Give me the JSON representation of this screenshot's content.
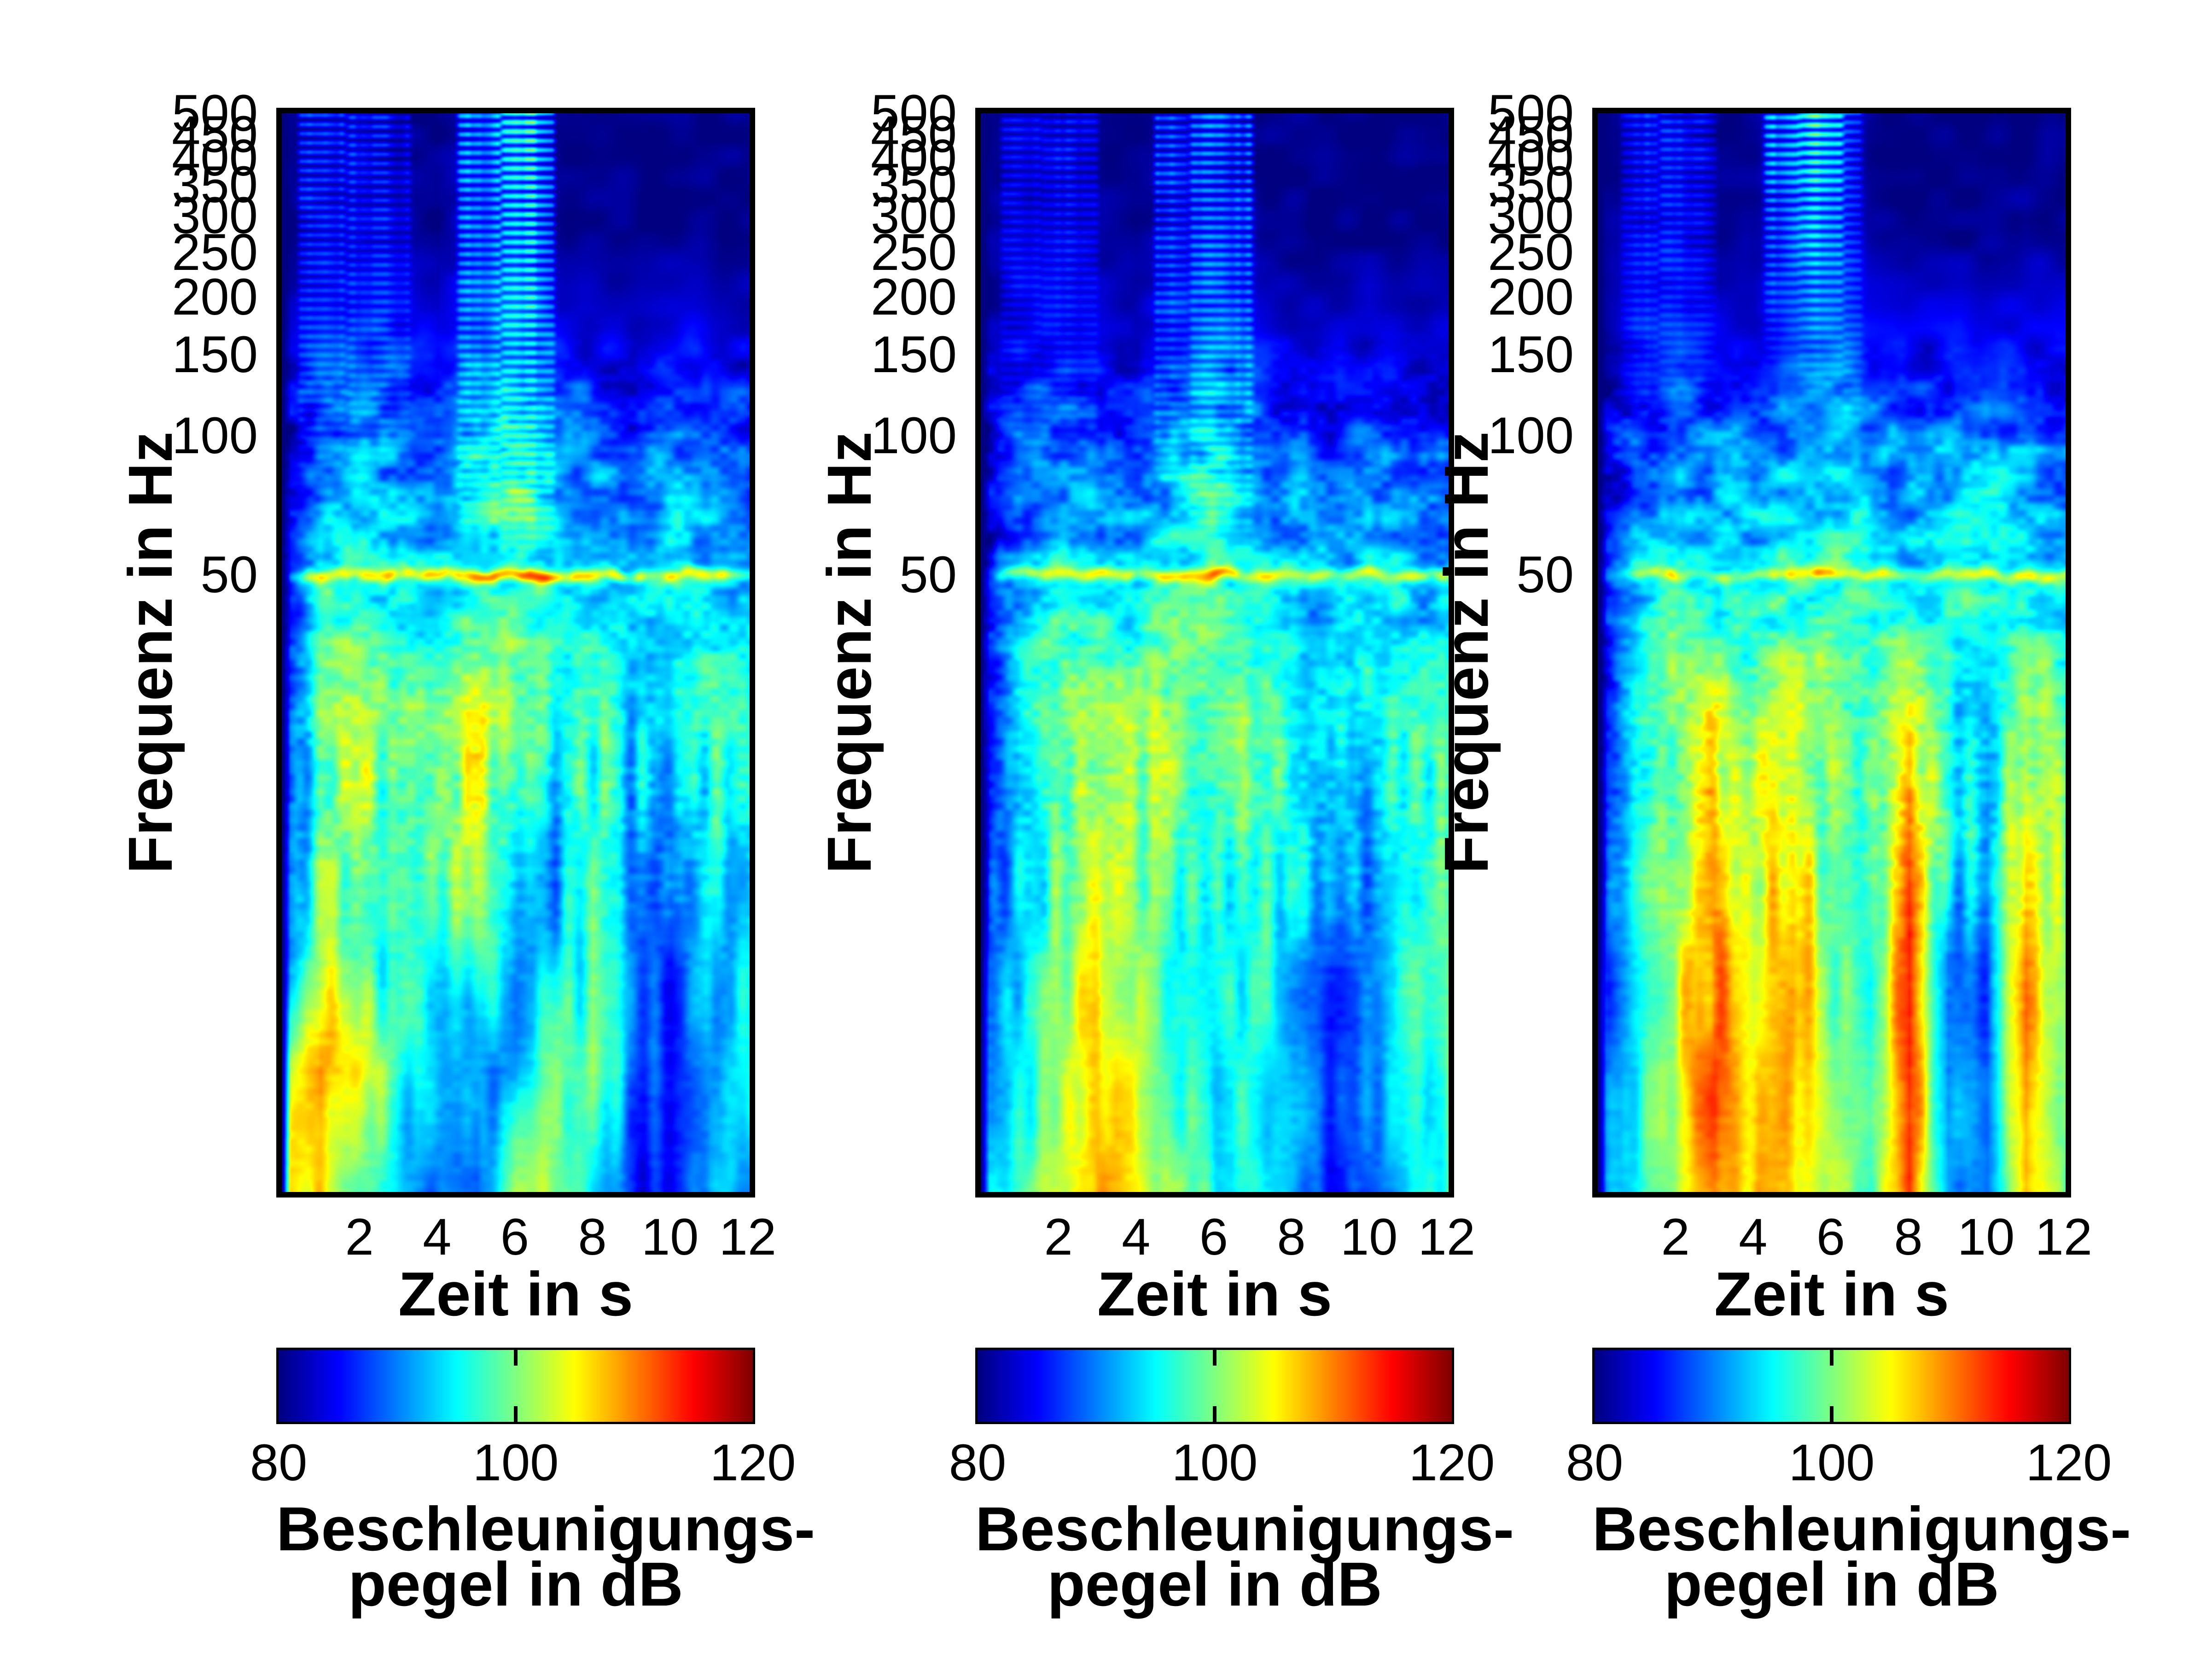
{
  "chart_data": {
    "type": "heatmap",
    "subtype": "spectrogram",
    "figure_background": "#ffffff",
    "colormap": {
      "name": "jet",
      "dark_blue": "#000080",
      "dark_red": "#800000"
    },
    "layout_hints": {
      "panels_side_by_side": 3,
      "colorbar_position": "below each panel",
      "grid": "off"
    },
    "panels": [
      {
        "position": "left",
        "xlabel": "Zeit in s",
        "ylabel": "Frequenz in Hz",
        "x_ticks": [
          2,
          4,
          6,
          8,
          10,
          12
        ],
        "y_ticks": [
          500,
          450,
          400,
          350,
          300,
          250,
          200,
          150,
          100,
          50
        ],
        "t_range": [
          0,
          12.05
        ],
        "f_range": [
          2.3,
          500
        ],
        "f_scale": "log",
        "colorbar": {
          "ticks": [
            80,
            100,
            120
          ],
          "min": 80,
          "max": 120,
          "caption_line1": "Beschleunigungs-",
          "caption_line2": "pegel in dB"
        },
        "seed": 101,
        "level_grid_dB": [
          [
            80,
            81,
            81,
            80,
            80,
            82,
            84,
            80,
            80,
            80,
            80,
            80,
            80
          ],
          [
            80,
            82,
            82,
            81,
            80,
            84,
            85,
            81,
            80,
            80,
            80,
            80,
            80
          ],
          [
            81,
            85,
            86,
            85,
            84,
            87,
            88,
            85,
            84,
            84,
            85,
            84,
            83
          ],
          [
            82,
            90,
            92,
            91,
            90,
            93,
            95,
            92,
            90,
            89,
            91,
            90,
            88
          ],
          [
            83,
            95,
            97,
            94,
            93,
            97,
            98,
            95,
            93,
            92,
            95,
            93,
            91
          ],
          [
            84,
            100,
            103,
            99,
            102,
            104,
            100,
            97,
            98,
            94,
            96,
            97,
            95
          ],
          [
            85,
            99,
            101,
            95,
            100,
            102,
            97,
            92,
            97,
            92,
            88,
            95,
            94
          ],
          [
            88,
            101,
            99,
            94,
            96,
            99,
            93,
            91,
            98,
            90,
            86,
            93,
            95
          ],
          [
            100,
            110,
            106,
            97,
            92,
            90,
            89,
            99,
            100,
            90,
            86,
            92,
            94
          ],
          [
            108,
            105,
            99,
            92,
            89,
            87,
            103,
            101,
            94,
            86,
            85,
            93,
            91
          ]
        ],
        "line50_boost_dB": [
          0,
          10,
          11,
          10,
          11,
          12,
          16,
          12,
          11,
          9,
          10,
          11,
          10
        ],
        "comb_events": [
          {
            "t_start": 0.45,
            "t_end": 1.6,
            "gain_dB": 9,
            "v_extent": 0.34
          },
          {
            "t_start": 1.7,
            "t_end": 3.3,
            "gain_dB": 7,
            "v_extent": 0.34
          },
          {
            "t_start": 4.55,
            "t_end": 5.6,
            "gain_dB": 15,
            "v_extent": 0.4
          },
          {
            "t_start": 5.7,
            "t_end": 7.0,
            "gain_dB": 17,
            "v_extent": 0.42
          }
        ]
      },
      {
        "position": "middle",
        "xlabel": "Zeit in s",
        "ylabel": "Frequenz in Hz",
        "x_ticks": [
          2,
          4,
          6,
          8,
          10,
          12
        ],
        "y_ticks": [
          500,
          450,
          400,
          350,
          300,
          250,
          200,
          150,
          100,
          50
        ],
        "t_range": [
          0,
          12.05
        ],
        "f_range": [
          2.3,
          500
        ],
        "f_scale": "log",
        "colorbar": {
          "ticks": [
            80,
            100,
            120
          ],
          "min": 80,
          "max": 120,
          "caption_line1": "Beschleunigungs-",
          "caption_line2": "pegel in dB"
        },
        "seed": 202,
        "level_grid_dB": [
          [
            80,
            81,
            81,
            80,
            80,
            81,
            82,
            80,
            80,
            80,
            80,
            80,
            80
          ],
          [
            80,
            82,
            82,
            81,
            80,
            82,
            83,
            81,
            80,
            80,
            80,
            80,
            80
          ],
          [
            80,
            84,
            85,
            84,
            83,
            86,
            87,
            85,
            83,
            83,
            84,
            83,
            83
          ],
          [
            81,
            88,
            90,
            89,
            89,
            92,
            94,
            92,
            89,
            88,
            90,
            89,
            88
          ],
          [
            82,
            92,
            95,
            93,
            93,
            96,
            97,
            95,
            93,
            91,
            94,
            93,
            92
          ],
          [
            83,
            96,
            100,
            101,
            103,
            100,
            98,
            100,
            96,
            93,
            95,
            98,
            97
          ],
          [
            84,
            95,
            99,
            104,
            101,
            98,
            95,
            99,
            95,
            90,
            92,
            97,
            96
          ],
          [
            85,
            93,
            98,
            106,
            102,
            96,
            93,
            97,
            93,
            88,
            90,
            96,
            97
          ],
          [
            88,
            95,
            100,
            108,
            104,
            98,
            94,
            96,
            92,
            87,
            89,
            95,
            98
          ],
          [
            92,
            97,
            102,
            109,
            105,
            100,
            96,
            95,
            92,
            86,
            88,
            94,
            97
          ]
        ],
        "line50_boost_dB": [
          0,
          8,
          9,
          9,
          10,
          9,
          10,
          9,
          8,
          7,
          8,
          9,
          8
        ],
        "comb_events": [
          {
            "t_start": 0.55,
            "t_end": 1.5,
            "gain_dB": 7,
            "v_extent": 0.32
          },
          {
            "t_start": 1.6,
            "t_end": 3.0,
            "gain_dB": 6,
            "v_extent": 0.32
          },
          {
            "t_start": 4.5,
            "t_end": 5.3,
            "gain_dB": 10,
            "v_extent": 0.36
          },
          {
            "t_start": 5.4,
            "t_end": 7.0,
            "gain_dB": 12,
            "v_extent": 0.4
          }
        ]
      },
      {
        "position": "right",
        "xlabel": "Zeit in s",
        "ylabel": "Frequenz in Hz",
        "x_ticks": [
          2,
          4,
          6,
          8,
          10,
          12
        ],
        "y_ticks": [
          500,
          450,
          400,
          350,
          300,
          250,
          200,
          150,
          100,
          50
        ],
        "t_range": [
          0,
          12.05
        ],
        "f_range": [
          2.3,
          500
        ],
        "f_scale": "log",
        "colorbar": {
          "ticks": [
            80,
            100,
            120
          ],
          "min": 80,
          "max": 120,
          "caption_line1": "Beschleunigungs-",
          "caption_line2": "pegel in dB"
        },
        "seed": 303,
        "level_grid_dB": [
          [
            80,
            81,
            82,
            80,
            80,
            83,
            84,
            80,
            80,
            80,
            80,
            80,
            80
          ],
          [
            80,
            82,
            83,
            81,
            80,
            84,
            85,
            81,
            80,
            80,
            80,
            81,
            80
          ],
          [
            80,
            85,
            86,
            84,
            84,
            87,
            88,
            85,
            84,
            85,
            86,
            85,
            84
          ],
          [
            81,
            89,
            91,
            90,
            90,
            93,
            94,
            92,
            90,
            91,
            93,
            92,
            90
          ],
          [
            82,
            93,
            96,
            95,
            95,
            97,
            98,
            96,
            94,
            97,
            96,
            96,
            93
          ],
          [
            83,
            97,
            100,
            104,
            100,
            103,
            100,
            96,
            105,
            96,
            94,
            103,
            98
          ],
          [
            84,
            96,
            101,
            108,
            102,
            106,
            99,
            96,
            110,
            98,
            92,
            107,
            99
          ],
          [
            85,
            95,
            103,
            111,
            104,
            108,
            100,
            96,
            113,
            90,
            89,
            109,
            100
          ],
          [
            87,
            96,
            104,
            112,
            105,
            109,
            101,
            96,
            114,
            90,
            88,
            110,
            100
          ],
          [
            89,
            97,
            103,
            111,
            106,
            108,
            102,
            97,
            112,
            92,
            87,
            108,
            99
          ]
        ],
        "line50_boost_dB": [
          0,
          7,
          8,
          8,
          8,
          9,
          11,
          8,
          7,
          7,
          9,
          11,
          8
        ],
        "comb_events": [
          {
            "t_start": 0.65,
            "t_end": 1.5,
            "gain_dB": 8,
            "v_extent": 0.3
          },
          {
            "t_start": 1.6,
            "t_end": 3.0,
            "gain_dB": 6,
            "v_extent": 0.28
          },
          {
            "t_start": 4.3,
            "t_end": 5.2,
            "gain_dB": 13,
            "v_extent": 0.24
          },
          {
            "t_start": 5.2,
            "t_end": 6.3,
            "gain_dB": 15,
            "v_extent": 0.26
          },
          {
            "t_start": 6.35,
            "t_end": 6.8,
            "gain_dB": 7,
            "v_extent": 0.3
          }
        ]
      }
    ]
  }
}
